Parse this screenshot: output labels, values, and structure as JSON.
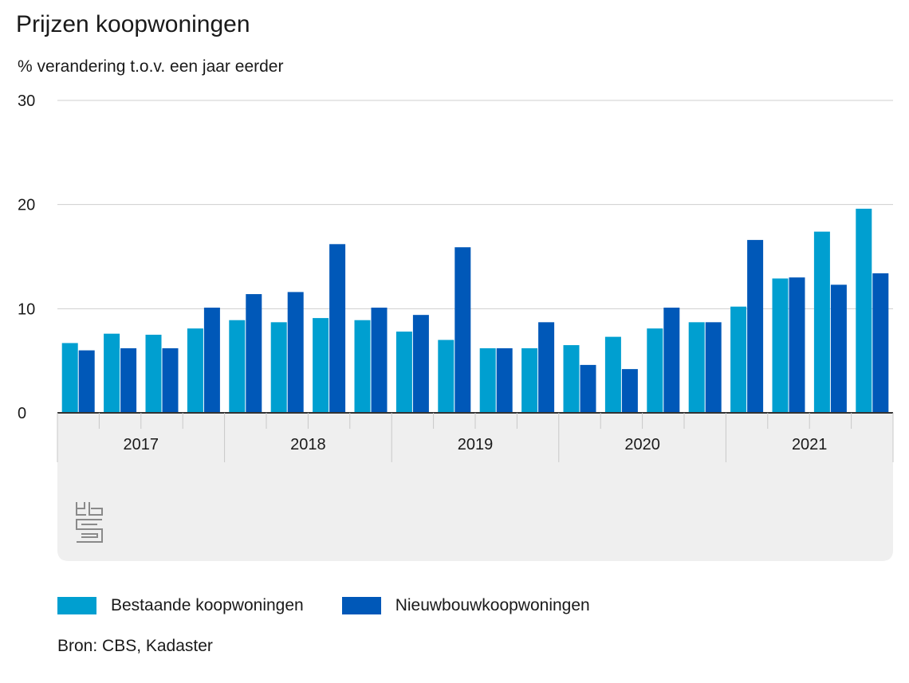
{
  "chart_data": {
    "type": "bar",
    "title": "Prijzen koopwoningen",
    "subtitle": "% verandering t.o.v. een jaar eerder",
    "y_ticks": [
      "30",
      "20",
      "10",
      "0"
    ],
    "ylim": [
      0,
      30
    ],
    "grid": true,
    "years": [
      "2017",
      "2018",
      "2019",
      "2020",
      "2021"
    ],
    "quarters_per_year": 4,
    "categories": [
      "2017 Q1",
      "2017 Q2",
      "2017 Q3",
      "2017 Q4",
      "2018 Q1",
      "2018 Q2",
      "2018 Q3",
      "2018 Q4",
      "2019 Q1",
      "2019 Q2",
      "2019 Q3",
      "2019 Q4",
      "2020 Q1",
      "2020 Q2",
      "2020 Q3",
      "2020 Q4",
      "2021 Q1",
      "2021 Q2",
      "2021 Q3",
      "2021 Q4"
    ],
    "series": [
      {
        "name": "Bestaande koopwoningen",
        "color": "#009fd0",
        "values": [
          6.7,
          7.6,
          7.5,
          8.1,
          8.9,
          8.7,
          9.1,
          8.9,
          7.8,
          7.0,
          6.2,
          6.2,
          6.5,
          7.3,
          8.1,
          8.7,
          10.2,
          12.9,
          17.4,
          19.6
        ]
      },
      {
        "name": "Nieuwbouwkoopwoningen",
        "color": "#0058b8",
        "values": [
          6.0,
          6.2,
          6.2,
          10.1,
          11.4,
          11.6,
          16.2,
          10.1,
          9.4,
          15.9,
          6.2,
          8.7,
          4.6,
          4.2,
          10.1,
          8.7,
          16.6,
          13.0,
          12.3,
          13.4
        ]
      }
    ],
    "legend_position": "bottom",
    "source": "Bron: CBS, Kadaster"
  },
  "logo": "cbs-logo"
}
